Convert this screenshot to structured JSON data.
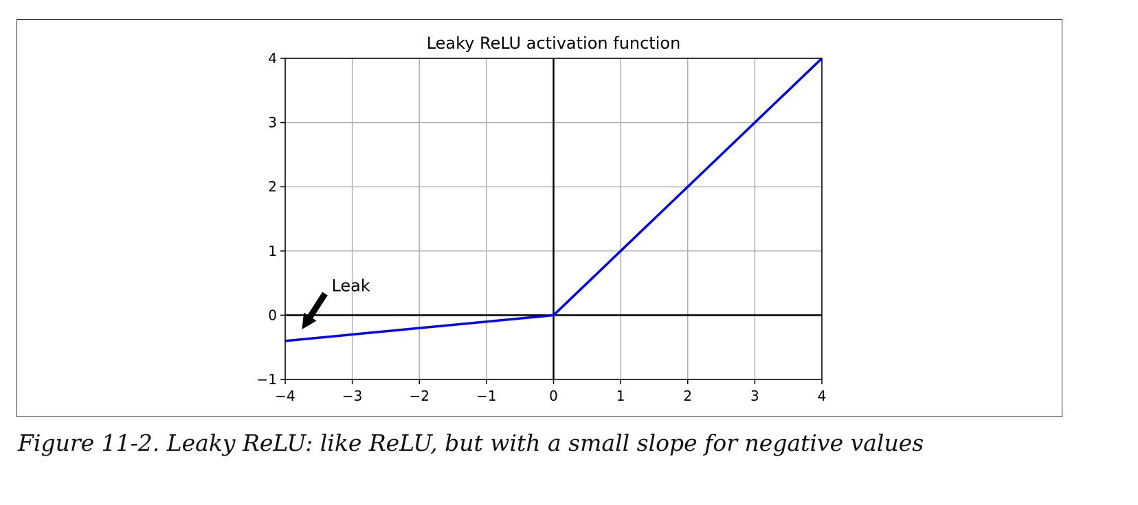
{
  "chart_data": {
    "type": "line",
    "title": "Leaky ReLU activation function",
    "xlabel": "",
    "ylabel": "",
    "xlim": [
      -4,
      4
    ],
    "ylim": [
      -1,
      4
    ],
    "xticks": [
      -4,
      -3,
      -2,
      -1,
      0,
      1,
      2,
      3,
      4
    ],
    "yticks": [
      -1,
      0,
      1,
      2,
      3,
      4
    ],
    "xtick_labels": [
      "−4",
      "−3",
      "−2",
      "−1",
      "0",
      "1",
      "2",
      "3",
      "4"
    ],
    "ytick_labels": [
      "−1",
      "0",
      "1",
      "2",
      "3",
      "4"
    ],
    "grid": true,
    "series": [
      {
        "x": [
          -4,
          0,
          4
        ],
        "y": [
          -0.4,
          0,
          4
        ],
        "color": "#0000ff"
      }
    ],
    "axes_lines": {
      "x0": true,
      "y0": true,
      "color": "#000000"
    },
    "annotations": [
      {
        "text": "Leak",
        "xy": [
          -3.75,
          -0.22
        ],
        "xytext": [
          -3.35,
          0.5
        ],
        "arrow": "black"
      }
    ]
  },
  "caption": "Figure 11-2. Leaky ReLU: like ReLU, but with a small slope for negative values"
}
